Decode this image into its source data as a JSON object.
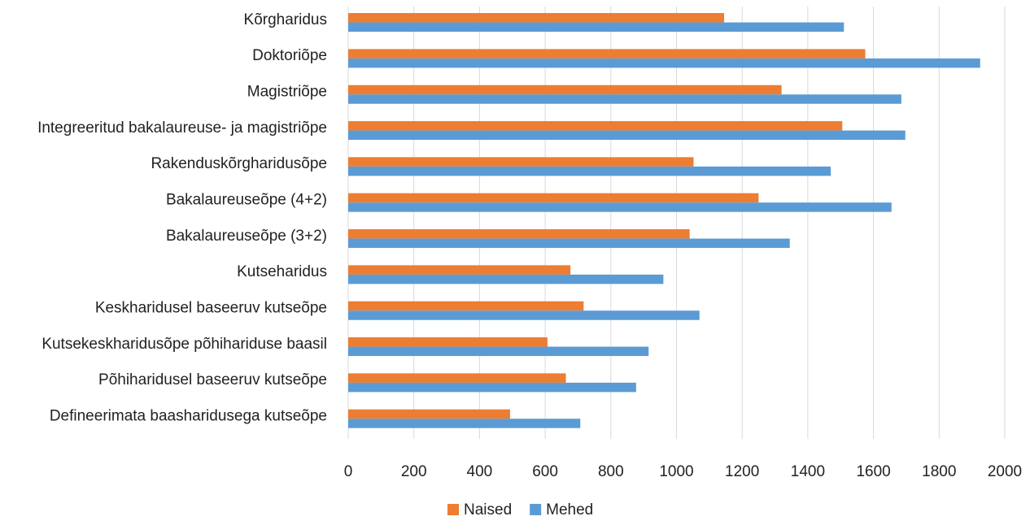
{
  "chart_data": {
    "type": "bar",
    "orientation": "horizontal",
    "categories": [
      "Kõrgharidus",
      "Doktoriõpe",
      "Magistriõpe",
      "Integreeritud bakalaureuse- ja magistriõpe",
      "Rakenduskõrgharidusõpe",
      "Bakalaureuseõpe (4+2)",
      "Bakalaureuseõpe (3+2)",
      "Kutseharidus",
      "Keskharidusel baseeruv kutseõpe",
      "Kutsekeskharidusõpe põhihariduse baasil",
      "Põhiharidusel baseeruv kutseõpe",
      "Defineerimata baasharidusega kutseõpe"
    ],
    "series": [
      {
        "name": "Naised",
        "color": "#ED7D31",
        "values": [
          1145,
          1575,
          1320,
          1505,
          1052,
          1250,
          1040,
          677,
          717,
          607,
          663,
          493
        ]
      },
      {
        "name": "Mehed",
        "color": "#5B9BD5",
        "values": [
          1510,
          1925,
          1685,
          1697,
          1470,
          1655,
          1345,
          960,
          1070,
          915,
          877,
          707
        ]
      }
    ],
    "xlim": [
      0,
      2000
    ],
    "xticks": [
      "0",
      "200",
      "400",
      "600",
      "800",
      "1000",
      "1200",
      "1400",
      "1600",
      "1800",
      "2000"
    ],
    "grid": "vertical",
    "legend": "bottom-center",
    "title": "",
    "xlabel": "",
    "ylabel": ""
  }
}
